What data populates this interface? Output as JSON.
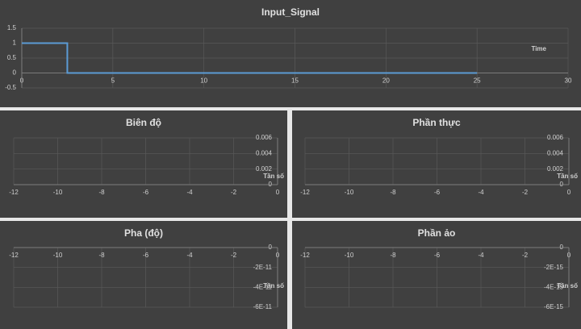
{
  "chart_data": [
    {
      "type": "line",
      "title": "Input_Signal",
      "x_label": "Time",
      "x": [
        0,
        2.5,
        2.5,
        25
      ],
      "series": [
        {
          "name": "Input_Signal",
          "color": "#5b9bd5",
          "values": [
            1,
            1,
            0,
            0
          ]
        }
      ],
      "xlim": [
        0,
        30
      ],
      "xticks": [
        0,
        5,
        10,
        15,
        20,
        25,
        30
      ],
      "ylim": [
        -0.5,
        1.5
      ],
      "yticks": [
        -0.5,
        0,
        0.5,
        1,
        1.5
      ],
      "grid": true
    },
    {
      "type": "line",
      "title": "Biên độ",
      "x_label": "Tần số",
      "xlim": [
        -12,
        0
      ],
      "xticks": [
        -12,
        -10,
        -8,
        -6,
        -4,
        -2,
        0
      ],
      "ylim": [
        0,
        0.006
      ],
      "yticks": [
        0,
        0.002,
        0.004,
        0.006
      ],
      "grid": true
    },
    {
      "type": "line",
      "title": "Phần thực",
      "x_label": "Tần số",
      "xlim": [
        -12,
        0
      ],
      "xticks": [
        -12,
        -10,
        -8,
        -6,
        -4,
        -2,
        0
      ],
      "ylim": [
        0,
        0.006
      ],
      "yticks": [
        0,
        0.002,
        0.004,
        0.006
      ],
      "grid": true
    },
    {
      "type": "line",
      "title": "Pha (độ)",
      "x_label": "Tần số",
      "xlim": [
        -12,
        0
      ],
      "xticks": [
        -12,
        -10,
        -8,
        -6,
        -4,
        -2,
        0
      ],
      "ylim": [
        -6e-11,
        0
      ],
      "yticks": [
        0,
        {
          "value": -2e-11,
          "label": "-2E-11"
        },
        {
          "value": -4e-11,
          "label": "-4E-11"
        },
        {
          "value": -6e-11,
          "label": "-6E-11"
        }
      ],
      "grid": true
    },
    {
      "type": "line",
      "title": "Phần ảo",
      "x_label": "Tần số",
      "xlim": [
        -12,
        0
      ],
      "xticks": [
        -12,
        -10,
        -8,
        -6,
        -4,
        -2,
        0
      ],
      "ylim": [
        -6e-15,
        0
      ],
      "yticks": [
        0,
        {
          "value": -2e-15,
          "label": "-2E-15"
        },
        {
          "value": -4e-15,
          "label": "-4E-15"
        },
        {
          "value": -6e-15,
          "label": "-6E-15"
        }
      ],
      "grid": true
    }
  ]
}
